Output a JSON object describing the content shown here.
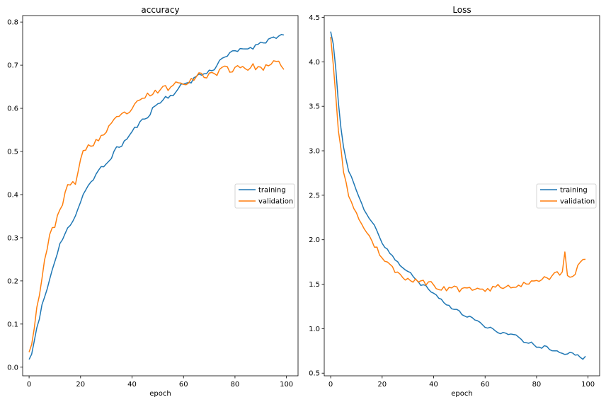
{
  "colors": {
    "training": "#1f77b4",
    "validation": "#ff7f0e"
  },
  "chart_data": [
    {
      "type": "line",
      "title": "accuracy",
      "xlabel": "epoch",
      "ylabel": "",
      "xlim": [
        -2.5,
        104.5
      ],
      "ylim": [
        -0.02,
        0.815
      ],
      "xticks": [
        0,
        20,
        40,
        60,
        80,
        100
      ],
      "yticks": [
        0.0,
        0.1,
        0.2,
        0.3,
        0.4,
        0.5,
        0.6,
        0.7,
        0.8
      ],
      "ytick_labels": [
        "0.0",
        "0.1",
        "0.2",
        "0.3",
        "0.4",
        "0.5",
        "0.6",
        "0.7",
        "0.8"
      ],
      "legend": "center-right",
      "series": [
        {
          "name": "training",
          "color_key": "training",
          "anchors": [
            [
              0,
              0.018
            ],
            [
              1,
              0.03
            ],
            [
              2,
              0.06
            ],
            [
              3,
              0.09
            ],
            [
              4,
              0.11
            ],
            [
              5,
              0.14
            ],
            [
              6,
              0.16
            ],
            [
              7,
              0.185
            ],
            [
              8,
              0.205
            ],
            [
              9,
              0.225
            ],
            [
              10,
              0.245
            ],
            [
              12,
              0.283
            ],
            [
              15,
              0.32
            ],
            [
              18,
              0.355
            ],
            [
              20,
              0.385
            ],
            [
              22,
              0.415
            ],
            [
              25,
              0.435
            ],
            [
              28,
              0.46
            ],
            [
              30,
              0.47
            ],
            [
              33,
              0.5
            ],
            [
              35,
              0.51
            ],
            [
              38,
              0.53
            ],
            [
              40,
              0.545
            ],
            [
              43,
              0.565
            ],
            [
              45,
              0.575
            ],
            [
              48,
              0.6
            ],
            [
              50,
              0.61
            ],
            [
              53,
              0.625
            ],
            [
              55,
              0.63
            ],
            [
              58,
              0.645
            ],
            [
              60,
              0.655
            ],
            [
              63,
              0.665
            ],
            [
              65,
              0.675
            ],
            [
              68,
              0.68
            ],
            [
              70,
              0.685
            ],
            [
              73,
              0.7
            ],
            [
              75,
              0.72
            ],
            [
              78,
              0.725
            ],
            [
              80,
              0.73
            ],
            [
              83,
              0.735
            ],
            [
              85,
              0.74
            ],
            [
              88,
              0.745
            ],
            [
              90,
              0.755
            ],
            [
              93,
              0.76
            ],
            [
              95,
              0.765
            ],
            [
              98,
              0.77
            ],
            [
              99,
              0.77
            ]
          ],
          "noise": 0.006,
          "seed": 11
        },
        {
          "name": "validation",
          "color_key": "validation",
          "anchors": [
            [
              0,
              0.035
            ],
            [
              1,
              0.06
            ],
            [
              2,
              0.1
            ],
            [
              3,
              0.14
            ],
            [
              4,
              0.17
            ],
            [
              5,
              0.21
            ],
            [
              6,
              0.255
            ],
            [
              7,
              0.275
            ],
            [
              8,
              0.3
            ],
            [
              10,
              0.33
            ],
            [
              12,
              0.37
            ],
            [
              15,
              0.415
            ],
            [
              18,
              0.43
            ],
            [
              20,
              0.48
            ],
            [
              22,
              0.505
            ],
            [
              25,
              0.52
            ],
            [
              28,
              0.535
            ],
            [
              30,
              0.545
            ],
            [
              33,
              0.565
            ],
            [
              35,
              0.575
            ],
            [
              38,
              0.59
            ],
            [
              40,
              0.6
            ],
            [
              43,
              0.61
            ],
            [
              45,
              0.625
            ],
            [
              48,
              0.635
            ],
            [
              50,
              0.64
            ],
            [
              53,
              0.645
            ],
            [
              55,
              0.65
            ],
            [
              58,
              0.66
            ],
            [
              60,
              0.665
            ],
            [
              63,
              0.67
            ],
            [
              65,
              0.675
            ],
            [
              68,
              0.675
            ],
            [
              70,
              0.68
            ],
            [
              73,
              0.685
            ],
            [
              75,
              0.69
            ],
            [
              78,
              0.69
            ],
            [
              80,
              0.695
            ],
            [
              83,
              0.7
            ],
            [
              85,
              0.695
            ],
            [
              88,
              0.695
            ],
            [
              90,
              0.695
            ],
            [
              93,
              0.695
            ],
            [
              95,
              0.7
            ],
            [
              98,
              0.7
            ],
            [
              99,
              0.69
            ]
          ],
          "noise": 0.009,
          "seed": 23
        }
      ]
    },
    {
      "type": "line",
      "title": "Loss",
      "xlabel": "epoch",
      "ylabel": "",
      "xlim": [
        -2.5,
        104.5
      ],
      "ylim": [
        0.47,
        4.52
      ],
      "xticks": [
        0,
        20,
        40,
        60,
        80,
        100
      ],
      "yticks": [
        0.5,
        1.0,
        1.5,
        2.0,
        2.5,
        3.0,
        3.5,
        4.0,
        4.5
      ],
      "ytick_labels": [
        "0.5",
        "1.0",
        "1.5",
        "2.0",
        "2.5",
        "3.0",
        "3.5",
        "4.0",
        "4.5"
      ],
      "legend": "center-right",
      "series": [
        {
          "name": "training",
          "color_key": "training",
          "anchors": [
            [
              0,
              4.34
            ],
            [
              1,
              4.2
            ],
            [
              2,
              3.9
            ],
            [
              3,
              3.55
            ],
            [
              4,
              3.25
            ],
            [
              5,
              3.05
            ],
            [
              6,
              2.9
            ],
            [
              7,
              2.78
            ],
            [
              8,
              2.7
            ],
            [
              10,
              2.55
            ],
            [
              12,
              2.4
            ],
            [
              15,
              2.22
            ],
            [
              18,
              2.1
            ],
            [
              20,
              1.95
            ],
            [
              22,
              1.9
            ],
            [
              25,
              1.78
            ],
            [
              28,
              1.68
            ],
            [
              30,
              1.64
            ],
            [
              33,
              1.56
            ],
            [
              35,
              1.5
            ],
            [
              38,
              1.45
            ],
            [
              40,
              1.4
            ],
            [
              43,
              1.32
            ],
            [
              45,
              1.28
            ],
            [
              48,
              1.22
            ],
            [
              50,
              1.18
            ],
            [
              53,
              1.14
            ],
            [
              55,
              1.12
            ],
            [
              58,
              1.06
            ],
            [
              60,
              1.02
            ],
            [
              63,
              0.99
            ],
            [
              65,
              0.97
            ],
            [
              68,
              0.95
            ],
            [
              70,
              0.93
            ],
            [
              73,
              0.9
            ],
            [
              75,
              0.86
            ],
            [
              78,
              0.84
            ],
            [
              80,
              0.8
            ],
            [
              83,
              0.8
            ],
            [
              85,
              0.78
            ],
            [
              88,
              0.76
            ],
            [
              90,
              0.73
            ],
            [
              93,
              0.72
            ],
            [
              95,
              0.7
            ],
            [
              98,
              0.67
            ],
            [
              99,
              0.69
            ]
          ],
          "noise": 0.018,
          "seed": 37
        },
        {
          "name": "validation",
          "color_key": "validation",
          "anchors": [
            [
              0,
              4.28
            ],
            [
              1,
              4.0
            ],
            [
              2,
              3.6
            ],
            [
              3,
              3.25
            ],
            [
              4,
              3.0
            ],
            [
              5,
              2.78
            ],
            [
              6,
              2.65
            ],
            [
              7,
              2.52
            ],
            [
              8,
              2.42
            ],
            [
              10,
              2.27
            ],
            [
              12,
              2.14
            ],
            [
              15,
              2.0
            ],
            [
              18,
              1.9
            ],
            [
              20,
              1.8
            ],
            [
              22,
              1.72
            ],
            [
              25,
              1.64
            ],
            [
              28,
              1.6
            ],
            [
              30,
              1.57
            ],
            [
              33,
              1.55
            ],
            [
              35,
              1.52
            ],
            [
              38,
              1.5
            ],
            [
              40,
              1.48
            ],
            [
              43,
              1.46
            ],
            [
              45,
              1.45
            ],
            [
              48,
              1.45
            ],
            [
              50,
              1.43
            ],
            [
              53,
              1.42
            ],
            [
              55,
              1.43
            ],
            [
              58,
              1.43
            ],
            [
              60,
              1.45
            ],
            [
              63,
              1.46
            ],
            [
              65,
              1.47
            ],
            [
              68,
              1.48
            ],
            [
              70,
              1.48
            ],
            [
              73,
              1.5
            ],
            [
              75,
              1.52
            ],
            [
              78,
              1.53
            ],
            [
              80,
              1.55
            ],
            [
              83,
              1.55
            ],
            [
              85,
              1.57
            ],
            [
              88,
              1.6
            ],
            [
              90,
              1.63
            ],
            [
              91,
              1.86
            ],
            [
              92,
              1.58
            ],
            [
              95,
              1.65
            ],
            [
              98,
              1.79
            ],
            [
              99,
              1.78
            ]
          ],
          "noise": 0.035,
          "seed": 53
        }
      ]
    }
  ]
}
